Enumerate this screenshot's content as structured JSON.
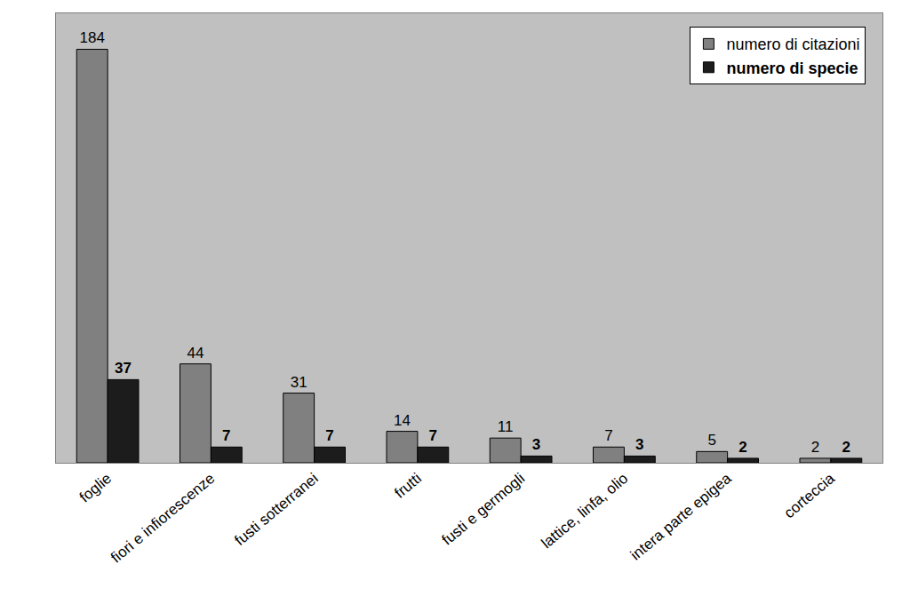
{
  "chart_data": {
    "type": "bar",
    "categories": [
      "foglie",
      "fiori e infiorescenze",
      "fusti sotterranei",
      "frutti",
      "fusti e germogli",
      "lattice, linfa, olio",
      "intera parte epigea",
      "corteccia"
    ],
    "series": [
      {
        "name": "numero di citazioni",
        "color": "#808080",
        "values": [
          184,
          44,
          31,
          14,
          11,
          7,
          5,
          2
        ]
      },
      {
        "name": "numero di specie",
        "color": "#1c1c1c",
        "values": [
          37,
          7,
          7,
          7,
          3,
          3,
          2,
          2
        ]
      }
    ],
    "ylim": [
      0,
      200
    ],
    "grid": false,
    "legend": "upper right",
    "data_labels": true,
    "tick_labels": "x"
  }
}
